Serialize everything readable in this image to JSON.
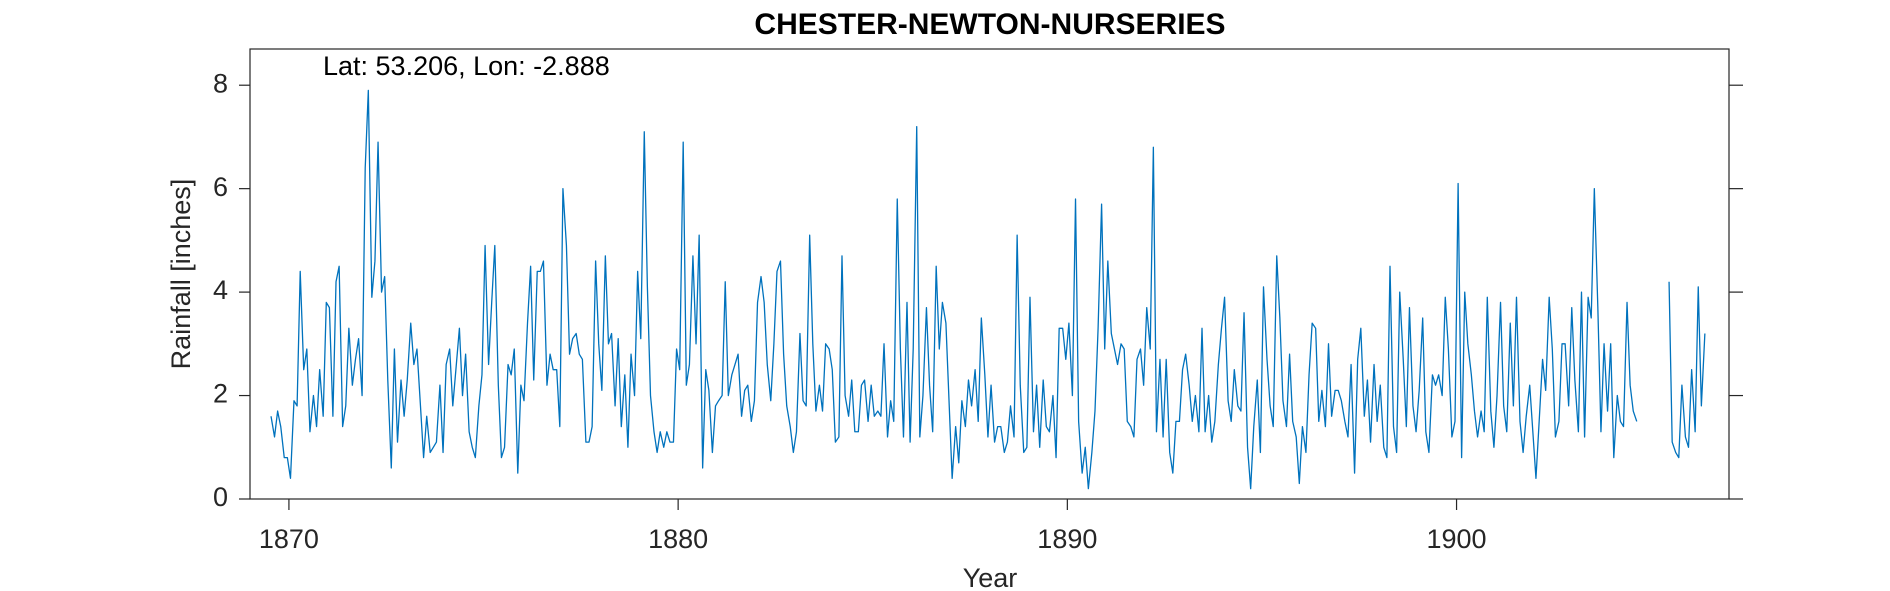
{
  "chart_data": {
    "type": "line",
    "title": "CHESTER-NEWTON-NURSERIES",
    "annotation": "Lat: 53.206, Lon: -2.888",
    "x_label": "Year",
    "y_label": "Rainfall [inches]",
    "color": "#0072bd",
    "xlim": [
      1869,
      1907
    ],
    "ylim": [
      0,
      8.7
    ],
    "xticks": [
      1870,
      1880,
      1890,
      1900
    ],
    "yticks": [
      0,
      2,
      4,
      6,
      8
    ],
    "grid": false,
    "x": [
      1869.54,
      1869.63,
      1869.71,
      1869.79,
      1869.88,
      1869.96,
      1870.04,
      1870.13,
      1870.21,
      1870.29,
      1870.38,
      1870.46,
      1870.54,
      1870.63,
      1870.71,
      1870.79,
      1870.88,
      1870.96,
      1871.04,
      1871.13,
      1871.21,
      1871.29,
      1871.38,
      1871.46,
      1871.54,
      1871.63,
      1871.71,
      1871.79,
      1871.88,
      1871.96,
      1872.04,
      1872.13,
      1872.21,
      1872.29,
      1872.38,
      1872.46,
      1872.54,
      1872.63,
      1872.71,
      1872.79,
      1872.88,
      1872.96,
      1873.04,
      1873.13,
      1873.21,
      1873.29,
      1873.38,
      1873.46,
      1873.54,
      1873.63,
      1873.71,
      1873.79,
      1873.88,
      1873.96,
      1874.04,
      1874.13,
      1874.21,
      1874.29,
      1874.38,
      1874.46,
      1874.54,
      1874.63,
      1874.71,
      1874.79,
      1874.88,
      1874.96,
      1875.04,
      1875.13,
      1875.21,
      1875.29,
      1875.38,
      1875.46,
      1875.54,
      1875.63,
      1875.71,
      1875.79,
      1875.88,
      1875.96,
      1876.04,
      1876.13,
      1876.21,
      1876.29,
      1876.38,
      1876.46,
      1876.54,
      1876.63,
      1876.71,
      1876.79,
      1876.88,
      1876.96,
      1877.04,
      1877.13,
      1877.21,
      1877.29,
      1877.38,
      1877.46,
      1877.54,
      1877.63,
      1877.71,
      1877.79,
      1877.88,
      1877.96,
      1878.04,
      1878.13,
      1878.21,
      1878.29,
      1878.38,
      1878.46,
      1878.54,
      1878.63,
      1878.71,
      1878.79,
      1878.88,
      1878.96,
      1879.04,
      1879.13,
      1879.21,
      1879.29,
      1879.38,
      1879.46,
      1879.54,
      1879.63,
      1879.71,
      1879.79,
      1879.88,
      1879.96,
      1880.04,
      1880.13,
      1880.21,
      1880.29,
      1880.38,
      1880.46,
      1880.54,
      1880.63,
      1880.71,
      1880.79,
      1880.88,
      1880.96,
      1881.04,
      1881.13,
      1881.21,
      1881.29,
      1881.38,
      1881.46,
      1881.54,
      1881.63,
      1881.71,
      1881.79,
      1881.88,
      1881.96,
      1882.04,
      1882.13,
      1882.21,
      1882.29,
      1882.38,
      1882.46,
      1882.54,
      1882.63,
      1882.71,
      1882.79,
      1882.88,
      1882.96,
      1883.04,
      1883.13,
      1883.21,
      1883.29,
      1883.38,
      1883.46,
      1883.54,
      1883.63,
      1883.71,
      1883.79,
      1883.88,
      1883.96,
      1884.04,
      1884.13,
      1884.21,
      1884.29,
      1884.38,
      1884.46,
      1884.54,
      1884.63,
      1884.71,
      1884.79,
      1884.88,
      1884.96,
      1885.04,
      1885.13,
      1885.21,
      1885.29,
      1885.38,
      1885.46,
      1885.54,
      1885.63,
      1885.71,
      1885.79,
      1885.88,
      1885.96,
      1886.04,
      1886.13,
      1886.21,
      1886.29,
      1886.38,
      1886.46,
      1886.54,
      1886.63,
      1886.71,
      1886.79,
      1886.88,
      1886.96,
      1887.04,
      1887.13,
      1887.21,
      1887.29,
      1887.38,
      1887.46,
      1887.54,
      1887.63,
      1887.71,
      1887.79,
      1887.88,
      1887.96,
      1888.04,
      1888.13,
      1888.21,
      1888.29,
      1888.38,
      1888.46,
      1888.54,
      1888.63,
      1888.71,
      1888.79,
      1888.88,
      1888.96,
      1889.04,
      1889.13,
      1889.21,
      1889.29,
      1889.38,
      1889.46,
      1889.54,
      1889.63,
      1889.71,
      1889.79,
      1889.88,
      1889.96,
      1890.04,
      1890.13,
      1890.21,
      1890.29,
      1890.38,
      1890.46,
      1890.54,
      1890.63,
      1890.71,
      1890.79,
      1890.88,
      1890.96,
      1891.04,
      1891.13,
      1891.21,
      1891.29,
      1891.38,
      1891.46,
      1891.54,
      1891.63,
      1891.71,
      1891.79,
      1891.88,
      1891.96,
      1892.04,
      1892.13,
      1892.21,
      1892.29,
      1892.38,
      1892.46,
      1892.54,
      1892.63,
      1892.71,
      1892.79,
      1892.88,
      1892.96,
      1893.04,
      1893.13,
      1893.21,
      1893.29,
      1893.38,
      1893.46,
      1893.54,
      1893.63,
      1893.71,
      1893.79,
      1893.88,
      1893.96,
      1894.04,
      1894.13,
      1894.21,
      1894.29,
      1894.38,
      1894.46,
      1894.54,
      1894.63,
      1894.71,
      1894.79,
      1894.88,
      1894.96,
      1895.04,
      1895.13,
      1895.21,
      1895.29,
      1895.38,
      1895.46,
      1895.54,
      1895.63,
      1895.71,
      1895.79,
      1895.88,
      1895.96,
      1896.04,
      1896.13,
      1896.21,
      1896.29,
      1896.38,
      1896.46,
      1896.54,
      1896.63,
      1896.71,
      1896.79,
      1896.88,
      1896.96,
      1897.04,
      1897.13,
      1897.21,
      1897.29,
      1897.38,
      1897.46,
      1897.54,
      1897.63,
      1897.71,
      1897.79,
      1897.88,
      1897.96,
      1898.04,
      1898.13,
      1898.21,
      1898.29,
      1898.38,
      1898.46,
      1898.54,
      1898.63,
      1898.71,
      1898.79,
      1898.88,
      1898.96,
      1899.04,
      1899.13,
      1899.21,
      1899.29,
      1899.38,
      1899.46,
      1899.54,
      1899.63,
      1899.71,
      1899.79,
      1899.88,
      1899.96,
      1900.04,
      1900.13,
      1900.21,
      1900.29,
      1900.38,
      1900.46,
      1900.54,
      1900.63,
      1900.71,
      1900.79,
      1900.88,
      1900.96,
      1901.04,
      1901.13,
      1901.21,
      1901.29,
      1901.38,
      1901.46,
      1901.54,
      1901.63,
      1901.71,
      1901.79,
      1901.88,
      1901.96,
      1902.04,
      1902.13,
      1902.21,
      1902.29,
      1902.38,
      1902.46,
      1902.54,
      1902.63,
      1902.71,
      1902.79,
      1902.88,
      1902.96,
      1903.04,
      1903.13,
      1903.21,
      1903.29,
      1903.38,
      1903.46,
      1903.54,
      1903.63,
      1903.71,
      1903.79,
      1903.88,
      1903.96,
      1904.04,
      1904.13,
      1904.21,
      1904.29,
      1904.38,
      1904.46,
      1904.54,
      1904.63,
      1905.0,
      1905.46,
      1905.54,
      1905.63,
      1905.71,
      1905.79,
      1905.88,
      1905.96,
      1906.04,
      1906.13,
      1906.21,
      1906.29,
      1906.38
    ],
    "values": [
      1.6,
      1.2,
      1.7,
      1.4,
      0.8,
      0.8,
      0.4,
      1.9,
      1.8,
      4.4,
      2.5,
      2.9,
      1.3,
      2.0,
      1.4,
      2.5,
      1.6,
      3.8,
      3.7,
      1.6,
      4.2,
      4.5,
      1.4,
      1.8,
      3.3,
      2.2,
      2.7,
      3.1,
      2.0,
      6.4,
      7.9,
      3.9,
      4.6,
      6.9,
      4.0,
      4.3,
      2.3,
      0.6,
      2.9,
      1.1,
      2.3,
      1.6,
      2.3,
      3.4,
      2.6,
      2.9,
      1.8,
      0.8,
      1.6,
      0.9,
      1.0,
      1.1,
      2.2,
      0.9,
      2.6,
      2.9,
      1.8,
      2.5,
      3.3,
      2.0,
      2.8,
      1.3,
      1.0,
      0.8,
      1.8,
      2.4,
      4.9,
      2.6,
      3.8,
      4.9,
      2.2,
      0.8,
      1.0,
      2.6,
      2.4,
      2.9,
      0.5,
      2.2,
      1.9,
      3.4,
      4.5,
      2.3,
      4.4,
      4.4,
      4.6,
      2.2,
      2.8,
      2.5,
      2.5,
      1.4,
      6.0,
      4.9,
      2.8,
      3.1,
      3.2,
      2.8,
      2.7,
      1.1,
      1.1,
      1.4,
      4.6,
      3.0,
      2.1,
      4.7,
      3.0,
      3.2,
      1.8,
      3.1,
      1.4,
      2.4,
      1.0,
      2.8,
      2.0,
      4.4,
      3.1,
      7.1,
      4.1,
      2.0,
      1.3,
      0.9,
      1.3,
      1.0,
      1.3,
      1.1,
      1.1,
      2.9,
      2.5,
      6.9,
      2.2,
      2.6,
      4.7,
      3.0,
      5.1,
      0.6,
      2.5,
      2.1,
      0.9,
      1.8,
      1.9,
      2.0,
      4.2,
      2.0,
      2.4,
      2.6,
      2.8,
      1.6,
      2.1,
      2.2,
      1.5,
      1.9,
      3.8,
      4.3,
      3.8,
      2.6,
      1.9,
      3.0,
      4.4,
      4.6,
      2.8,
      1.8,
      1.4,
      0.9,
      1.3,
      3.2,
      1.9,
      1.8,
      5.1,
      3.0,
      1.7,
      2.2,
      1.7,
      3.0,
      2.9,
      2.5,
      1.1,
      1.2,
      4.7,
      2.0,
      1.6,
      2.3,
      1.3,
      1.3,
      2.2,
      2.3,
      1.5,
      2.2,
      1.6,
      1.7,
      1.6,
      3.0,
      1.2,
      1.9,
      1.5,
      5.8,
      2.9,
      1.2,
      3.8,
      1.1,
      2.9,
      7.2,
      1.2,
      2.0,
      3.7,
      2.2,
      1.3,
      4.5,
      2.9,
      3.8,
      3.4,
      1.9,
      0.4,
      1.4,
      0.7,
      1.9,
      1.4,
      2.3,
      1.8,
      2.5,
      1.5,
      3.5,
      2.4,
      1.2,
      2.2,
      1.1,
      1.4,
      1.4,
      0.9,
      1.1,
      1.8,
      1.2,
      5.1,
      2.2,
      0.9,
      1.0,
      3.9,
      1.3,
      2.2,
      1.0,
      2.3,
      1.4,
      1.3,
      2.0,
      0.8,
      3.3,
      3.3,
      2.7,
      3.4,
      2.0,
      5.8,
      1.5,
      0.5,
      1.0,
      0.2,
      0.9,
      1.7,
      3.3,
      5.7,
      2.9,
      4.6,
      3.2,
      2.9,
      2.6,
      3.0,
      2.9,
      1.5,
      1.4,
      1.2,
      2.7,
      2.9,
      2.2,
      3.7,
      2.9,
      6.8,
      1.3,
      2.7,
      1.2,
      2.7,
      0.9,
      0.5,
      1.5,
      1.5,
      2.5,
      2.8,
      2.2,
      1.5,
      2.0,
      1.3,
      3.3,
      1.3,
      2.0,
      1.1,
      1.5,
      2.6,
      3.3,
      3.9,
      1.9,
      1.5,
      2.5,
      1.8,
      1.7,
      3.6,
      1.0,
      0.2,
      1.4,
      2.3,
      0.9,
      4.1,
      2.7,
      1.8,
      1.4,
      4.7,
      3.5,
      1.9,
      1.4,
      2.8,
      1.5,
      1.2,
      0.3,
      1.4,
      0.9,
      2.4,
      3.4,
      3.3,
      1.5,
      2.1,
      1.4,
      3.0,
      1.6,
      2.1,
      2.1,
      1.9,
      1.5,
      1.2,
      2.6,
      0.5,
      2.7,
      3.3,
      1.6,
      2.3,
      1.1,
      2.6,
      1.5,
      2.2,
      1.0,
      0.8,
      4.5,
      1.4,
      0.9,
      4.0,
      2.7,
      1.4,
      3.7,
      1.8,
      1.3,
      2.1,
      3.5,
      1.3,
      0.9,
      2.4,
      2.2,
      2.4,
      2.0,
      3.9,
      2.9,
      1.2,
      1.5,
      6.1,
      0.8,
      4.0,
      3.0,
      2.4,
      1.7,
      1.2,
      1.7,
      1.3,
      3.9,
      1.7,
      1.0,
      2.0,
      3.8,
      1.8,
      1.3,
      3.4,
      1.8,
      3.9,
      1.5,
      0.9,
      1.6,
      2.2,
      1.3,
      0.4,
      1.6,
      2.7,
      2.1,
      3.9,
      2.9,
      1.2,
      1.5,
      3.0,
      3.0,
      1.8,
      3.7,
      2.3,
      1.3,
      4.0,
      1.2,
      3.9,
      3.5,
      6.0,
      3.7,
      1.3,
      3.0,
      1.7,
      3.0,
      0.8,
      2.0,
      1.5,
      1.4,
      3.8,
      2.2,
      1.7,
      1.5,
      null,
      4.2,
      1.1,
      0.9,
      0.8,
      2.2,
      1.2,
      1.0,
      2.5,
      1.3,
      4.1,
      1.8,
      3.2
    ]
  }
}
